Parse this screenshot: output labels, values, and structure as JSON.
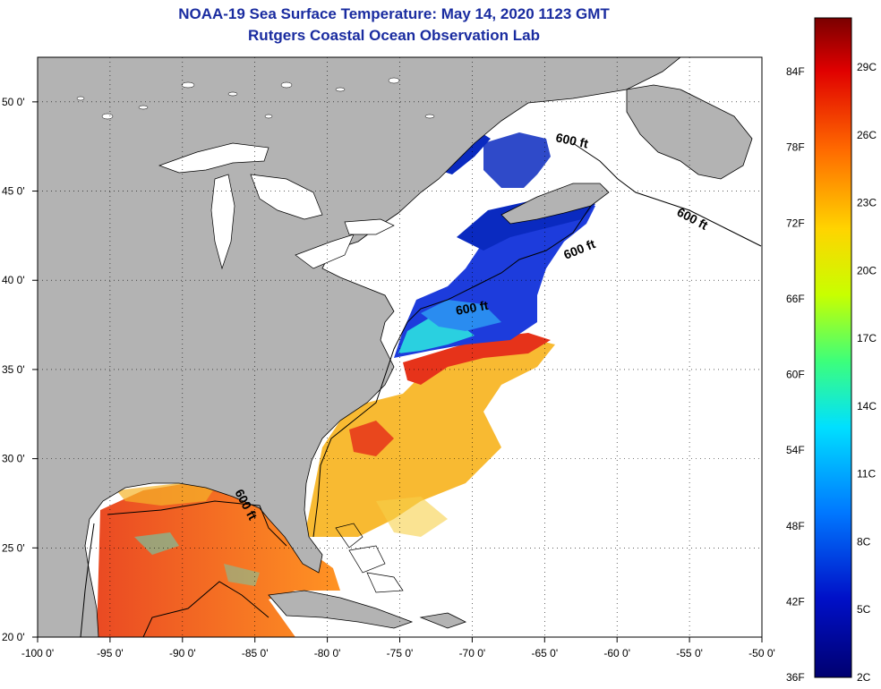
{
  "title": {
    "line1": "NOAA-19 Sea Surface Temperature:  May 14, 2020 1123 GMT",
    "line2": "Rutgers Coastal Ocean Observation Lab"
  },
  "map": {
    "lon_range": [
      -100,
      -50
    ],
    "lat_range": [
      20,
      52.5
    ],
    "lon_ticks": [
      "-100 0'",
      "-95 0'",
      "-90 0'",
      "-85 0'",
      "-80 0'",
      "-75 0'",
      "-70 0'",
      "-65 0'",
      "-60 0'",
      "-55 0'",
      "-50 0'"
    ],
    "lat_ticks": [
      "50 0'",
      "45 0'",
      "40 0'",
      "35 0'",
      "30 0'",
      "25 0'",
      "20 0'"
    ],
    "isobath_label": "600 ft",
    "colors": {
      "land": "#b3b3b3",
      "water": "#ffffff",
      "coast": "#000000"
    }
  },
  "colorbar": {
    "fahrenheit": [
      "84F",
      "78F",
      "72F",
      "66F",
      "60F",
      "54F",
      "48F",
      "42F",
      "36F"
    ],
    "celsius": [
      "29C",
      "26C",
      "23C",
      "20C",
      "17C",
      "14C",
      "11C",
      "8C",
      "5C",
      "2C"
    ],
    "colors": [
      "#7a0000",
      "#e00000",
      "#ff6a00",
      "#ffd400",
      "#c8ff00",
      "#3dff7a",
      "#00e0ff",
      "#0078ff",
      "#0010c8",
      "#000070"
    ]
  }
}
